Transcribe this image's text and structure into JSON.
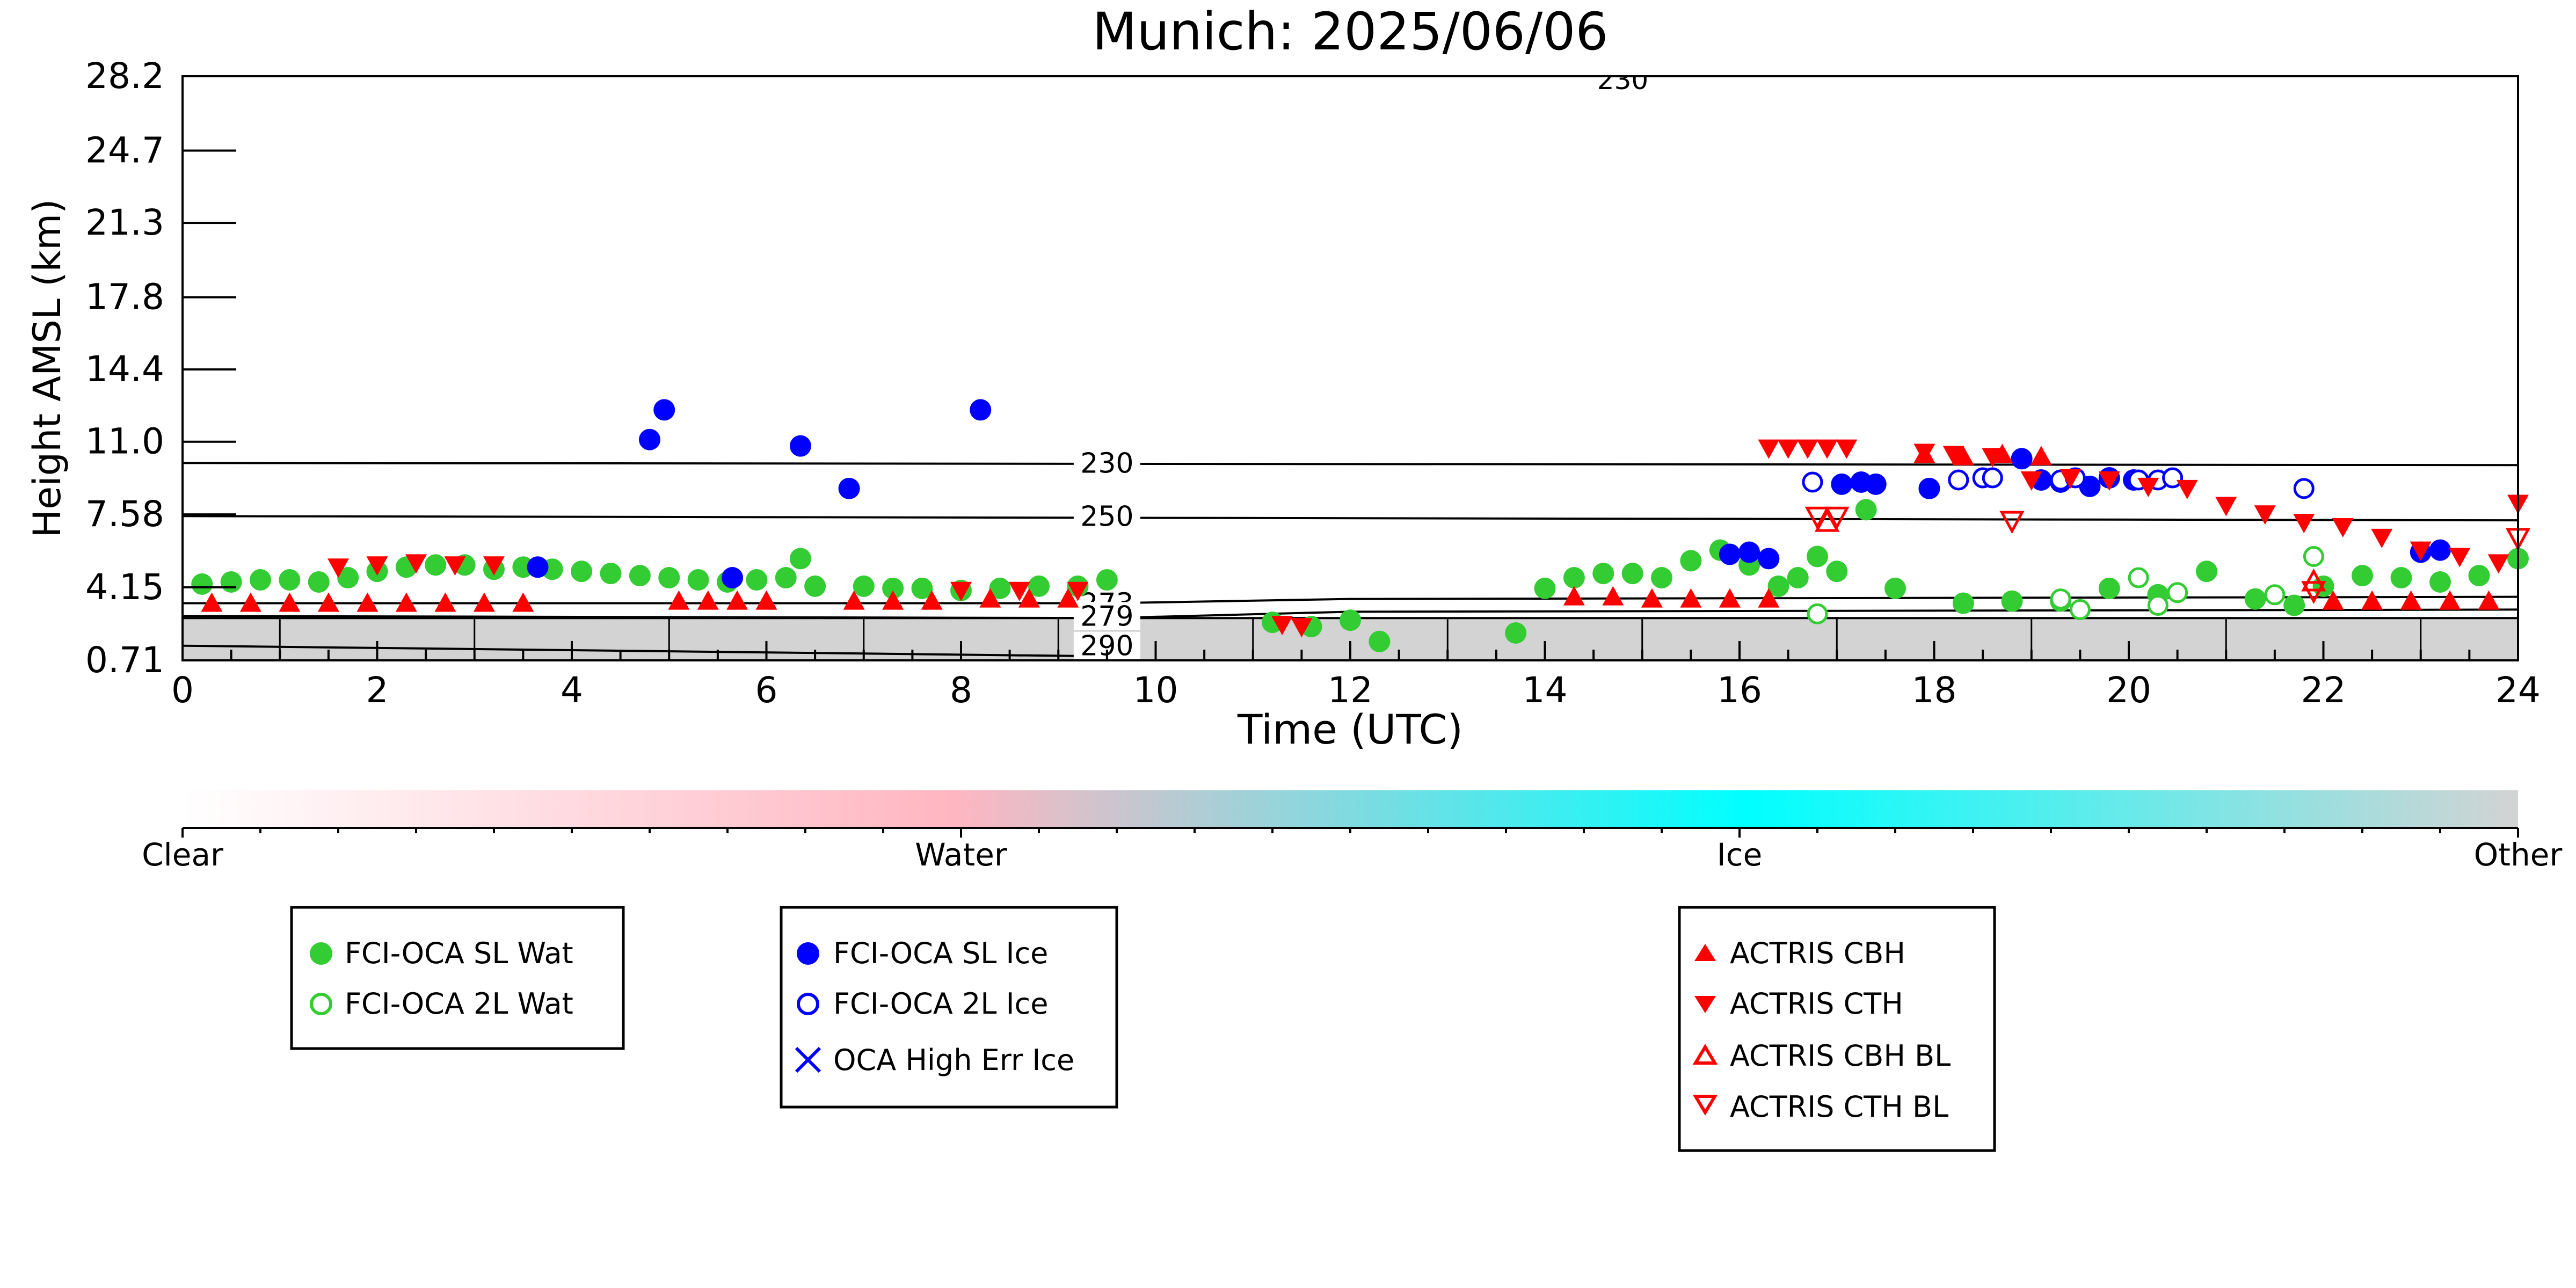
{
  "chart_data": {
    "type": "scatter",
    "title": "Munich: 2025/06/06",
    "xlabel": "Time (UTC)",
    "ylabel": "Height AMSL (km)",
    "xlim": [
      0,
      24
    ],
    "ylim": [
      0.71,
      28.2
    ],
    "xticks": [
      "0",
      "2",
      "4",
      "6",
      "8",
      "10",
      "12",
      "14",
      "16",
      "18",
      "20",
      "22",
      "24"
    ],
    "yticks": [
      "0.71",
      "4.15",
      "7.58",
      "11.0",
      "14.4",
      "17.8",
      "21.3",
      "24.7",
      "28.2"
    ],
    "colorbar": {
      "labels": [
        "Clear",
        "Water",
        "Ice",
        "Other"
      ],
      "colors": [
        "#ffffff",
        "#ffb6c1",
        "#00ffff",
        "#d3d3d3"
      ]
    },
    "isotherms": [
      {
        "label": "230",
        "points": [
          [
            0,
            10.0
          ],
          [
            24,
            9.9
          ]
        ]
      },
      {
        "label": "250",
        "points": [
          [
            0,
            7.5
          ],
          [
            24,
            7.3
          ]
        ]
      },
      {
        "label": "273",
        "points": [
          [
            0,
            3.4
          ],
          [
            9.5,
            3.4
          ],
          [
            12,
            3.6
          ],
          [
            24,
            3.7
          ]
        ]
      },
      {
        "label": "279",
        "points": [
          [
            0,
            2.8
          ],
          [
            9.5,
            2.7
          ],
          [
            12,
            3.0
          ],
          [
            24,
            3.1
          ]
        ]
      },
      {
        "label": "290",
        "points": [
          [
            0,
            1.4
          ],
          [
            9.5,
            0.9
          ]
        ]
      }
    ],
    "upper_isotherm_label": "230",
    "ground": {
      "color": "#d3d3d3",
      "top": 2.7
    },
    "series": [
      {
        "name": "FCI-OCA SL Wat",
        "marker": "circle-filled",
        "color": "#33cc33",
        "x": [
          0.2,
          0.5,
          0.8,
          1.1,
          1.4,
          1.7,
          2.0,
          2.3,
          2.6,
          2.9,
          3.2,
          3.5,
          3.8,
          4.1,
          4.4,
          4.7,
          5.0,
          5.3,
          5.6,
          5.9,
          6.2,
          6.35,
          6.5,
          7.0,
          7.3,
          7.6,
          8.0,
          8.4,
          8.8,
          9.2,
          9.5,
          11.2,
          11.6,
          12.0,
          12.3,
          13.7,
          14.0,
          14.3,
          14.6,
          14.9,
          15.2,
          15.5,
          15.8,
          16.1,
          16.4,
          16.6,
          16.8,
          17.0,
          17.3,
          17.6,
          18.3,
          18.8,
          19.3,
          19.8,
          20.3,
          20.8,
          21.3,
          21.7,
          22.0,
          22.4,
          22.8,
          23.2,
          23.6,
          24.0
        ],
        "y": [
          4.3,
          4.4,
          4.5,
          4.5,
          4.4,
          4.6,
          4.9,
          5.1,
          5.2,
          5.2,
          5.0,
          5.1,
          5.0,
          4.9,
          4.8,
          4.7,
          4.6,
          4.5,
          4.4,
          4.5,
          4.6,
          5.5,
          4.2,
          4.2,
          4.1,
          4.1,
          4.0,
          4.1,
          4.2,
          4.2,
          4.5,
          2.5,
          2.3,
          2.6,
          1.6,
          2.0,
          4.1,
          4.6,
          4.8,
          4.8,
          4.6,
          5.4,
          5.9,
          5.2,
          4.2,
          4.6,
          5.6,
          4.9,
          7.8,
          4.1,
          3.4,
          3.5,
          3.5,
          4.1,
          3.8,
          4.9,
          3.6,
          3.3,
          4.2,
          4.7,
          4.6,
          4.4,
          4.7,
          5.5
        ]
      },
      {
        "name": "FCI-OCA 2L Wat",
        "marker": "circle-open",
        "color": "#33cc33",
        "x": [
          16.8,
          19.3,
          19.5,
          20.1,
          20.3,
          20.5,
          21.5,
          21.9
        ],
        "y": [
          2.9,
          3.6,
          3.1,
          4.6,
          3.3,
          3.9,
          3.8,
          5.6
        ]
      },
      {
        "name": "FCI-OCA SL Ice",
        "marker": "circle-filled",
        "color": "#0000ff",
        "x": [
          3.65,
          4.8,
          4.95,
          5.65,
          6.35,
          6.85,
          8.2,
          15.9,
          16.1,
          16.3,
          17.05,
          17.25,
          17.4,
          17.95,
          18.9,
          19.1,
          19.3,
          19.6,
          19.8,
          20.05,
          23.0,
          23.2
        ],
        "y": [
          5.1,
          11.1,
          12.5,
          4.6,
          10.8,
          8.8,
          12.5,
          5.7,
          5.8,
          5.5,
          9.0,
          9.1,
          9.0,
          8.8,
          10.2,
          9.2,
          9.1,
          8.9,
          9.3,
          9.2,
          5.8,
          5.9
        ]
      },
      {
        "name": "FCI-OCA 2L Ice",
        "marker": "circle-open",
        "color": "#0000ff",
        "x": [
          16.75,
          18.25,
          18.5,
          18.6,
          19.3,
          19.45,
          20.1,
          20.3,
          20.45,
          21.8
        ],
        "y": [
          9.1,
          9.2,
          9.3,
          9.3,
          9.2,
          9.3,
          9.2,
          9.2,
          9.3,
          8.8
        ]
      },
      {
        "name": "OCA High Err Ice",
        "marker": "x",
        "color": "#0000ff",
        "x": [],
        "y": []
      },
      {
        "name": "ACTRIS CBH",
        "marker": "triangle-up-filled",
        "color": "#ff0000",
        "x": [
          0.3,
          0.7,
          1.1,
          1.5,
          1.9,
          2.3,
          2.7,
          3.1,
          3.5,
          5.1,
          5.4,
          5.7,
          6.0,
          6.9,
          7.3,
          7.7,
          8.3,
          8.7,
          9.1,
          14.3,
          14.7,
          15.1,
          15.5,
          15.9,
          16.3,
          17.9,
          18.3,
          18.7,
          19.1,
          22.1,
          22.5,
          22.9,
          23.3,
          23.7
        ],
        "y": [
          3.4,
          3.4,
          3.4,
          3.4,
          3.4,
          3.4,
          3.4,
          3.4,
          3.4,
          3.5,
          3.5,
          3.5,
          3.5,
          3.5,
          3.5,
          3.5,
          3.6,
          3.6,
          3.6,
          3.7,
          3.7,
          3.6,
          3.6,
          3.6,
          3.6,
          10.4,
          10.3,
          10.4,
          10.3,
          3.5,
          3.5,
          3.5,
          3.5,
          3.5
        ]
      },
      {
        "name": "ACTRIS CTH",
        "marker": "triangle-down-filled",
        "color": "#ff0000",
        "x": [
          1.6,
          2.0,
          2.4,
          2.8,
          3.2,
          16.3,
          16.5,
          16.7,
          16.9,
          17.1,
          17.9,
          18.2,
          18.6,
          19.0,
          19.4,
          19.8,
          20.2,
          20.6,
          21.0,
          21.4,
          21.8,
          22.2,
          22.6,
          23.0,
          23.4,
          23.8,
          24.0,
          11.3,
          11.5,
          8.0,
          8.6,
          9.2
        ],
        "y": [
          5.1,
          5.2,
          5.3,
          5.2,
          5.2,
          10.7,
          10.7,
          10.7,
          10.7,
          10.7,
          10.5,
          10.4,
          10.3,
          9.2,
          9.3,
          9.2,
          8.9,
          8.8,
          8.0,
          7.6,
          7.2,
          7.0,
          6.5,
          5.9,
          5.6,
          5.3,
          8.1,
          2.4,
          2.3,
          4.0,
          4.0,
          4.0
        ]
      },
      {
        "name": "ACTRIS CBH BL",
        "marker": "triangle-up-open",
        "color": "#ff0000",
        "x": [
          16.9,
          21.9
        ],
        "y": [
          7.2,
          4.4
        ]
      },
      {
        "name": "ACTRIS CTH BL",
        "marker": "triangle-down-open",
        "color": "#ff0000",
        "x": [
          16.8,
          17.0,
          18.8,
          21.9,
          24.0
        ],
        "y": [
          7.5,
          7.5,
          7.3,
          4.0,
          6.5
        ]
      }
    ]
  }
}
